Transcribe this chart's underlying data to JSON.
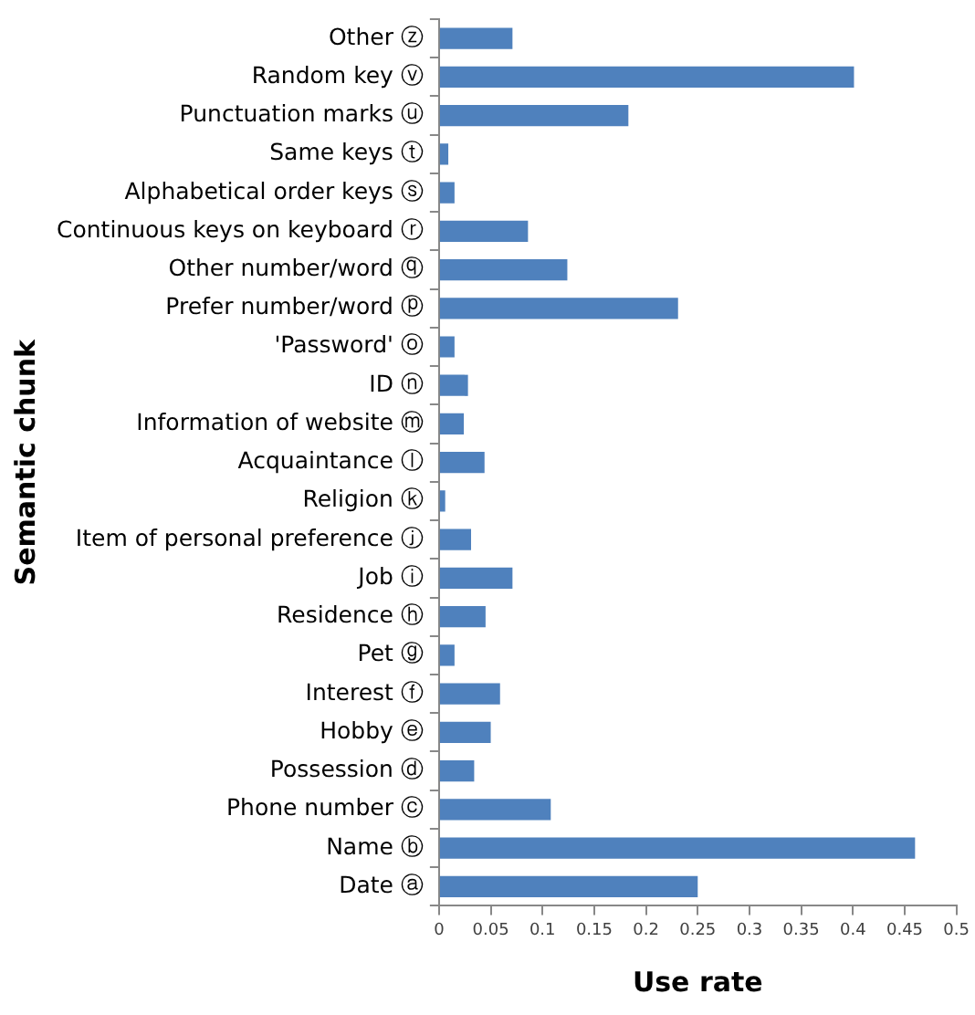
{
  "chart_data": {
    "type": "bar",
    "orientation": "horizontal",
    "xlabel": "Use rate",
    "ylabel": "Semantic chunk",
    "categories": [
      "Other ⓩ",
      "Random key ⓥ",
      "Punctuation marks ⓤ",
      "Same keys ⓣ",
      "Alphabetical order keys ⓢ",
      "Continuous keys on keyboard ⓡ",
      "Other number/word ⓠ",
      "Prefer number/word ⓟ",
      "'Password' ⓞ",
      "ID ⓝ",
      "Information of website ⓜ",
      "Acquaintance ⓛ",
      "Religion ⓚ",
      "Item of personal preference ⓙ",
      "Job ⓘ",
      "Residence ⓗ",
      "Pet ⓖ",
      "Interest ⓕ",
      "Hobby ⓔ",
      "Possession ⓓ",
      "Phone number ⓒ",
      "Name ⓑ",
      "Date ⓐ"
    ],
    "values": [
      0.071,
      0.401,
      0.183,
      0.009,
      0.015,
      0.086,
      0.124,
      0.231,
      0.015,
      0.028,
      0.024,
      0.044,
      0.006,
      0.031,
      0.071,
      0.045,
      0.015,
      0.059,
      0.05,
      0.034,
      0.108,
      0.46,
      0.25
    ],
    "color": "#4f81bd",
    "xlim": [
      0,
      0.5
    ],
    "xticks": [
      0,
      0.05,
      0.1,
      0.15,
      0.2,
      0.25,
      0.3,
      0.35,
      0.4,
      0.45,
      0.5
    ],
    "grid": false,
    "legend": false
  }
}
